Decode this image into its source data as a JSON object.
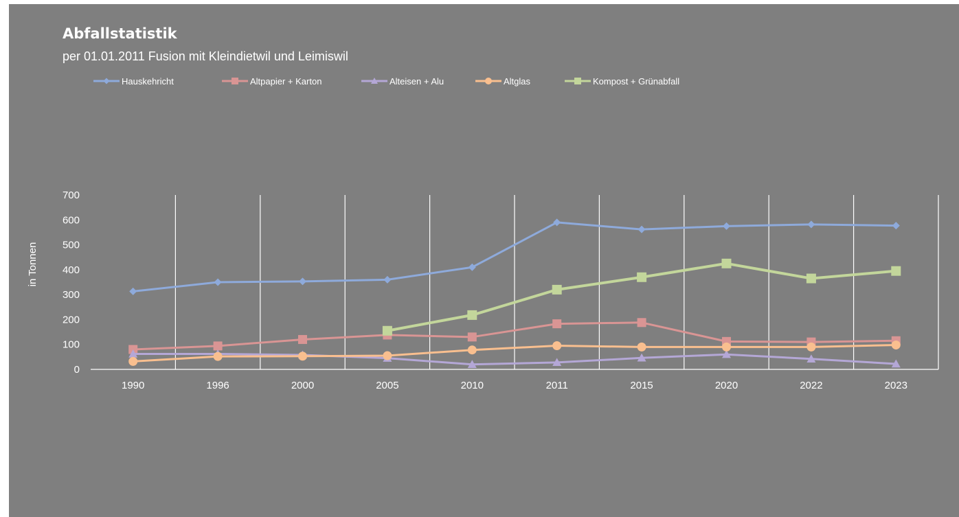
{
  "chart_data": {
    "type": "line",
    "title": "Abfallstatistik",
    "subtitle": "per 01.01.2011 Fusion mit Kleindietwil und Leimiswil",
    "xlabel": "",
    "ylabel": "in Tonnen",
    "categories": [
      "1990",
      "1996",
      "2000",
      "2005",
      "2010",
      "2011",
      "2015",
      "2020",
      "2022",
      "2023"
    ],
    "ylim": [
      0,
      700
    ],
    "yticks": [
      0,
      100,
      200,
      300,
      400,
      500,
      600,
      700
    ],
    "grid": "vertical",
    "legend_position": "top-left",
    "series": [
      {
        "name": "Hauskehricht",
        "color": "#8eaadb",
        "marker": "diamond",
        "values": [
          313,
          350,
          353,
          360,
          410,
          590,
          562,
          575,
          582,
          577
        ]
      },
      {
        "name": "Altpapier + Karton",
        "color": "#d99594",
        "marker": "square",
        "values": [
          80,
          94,
          120,
          138,
          130,
          183,
          188,
          112,
          110,
          115
        ]
      },
      {
        "name": "Alteisen + Alu",
        "color": "#b4a7d6",
        "marker": "triangle",
        "values": [
          62,
          62,
          58,
          45,
          20,
          28,
          46,
          60,
          42,
          22
        ]
      },
      {
        "name": "Altglas",
        "color": "#f9bf8f",
        "marker": "circle",
        "values": [
          32,
          52,
          53,
          55,
          78,
          95,
          90,
          90,
          90,
          98
        ]
      },
      {
        "name": "Kompost + Grünabfall",
        "color": "#c3d69b",
        "marker": "square",
        "values": [
          null,
          null,
          null,
          155,
          218,
          320,
          370,
          425,
          365,
          395
        ]
      }
    ]
  }
}
